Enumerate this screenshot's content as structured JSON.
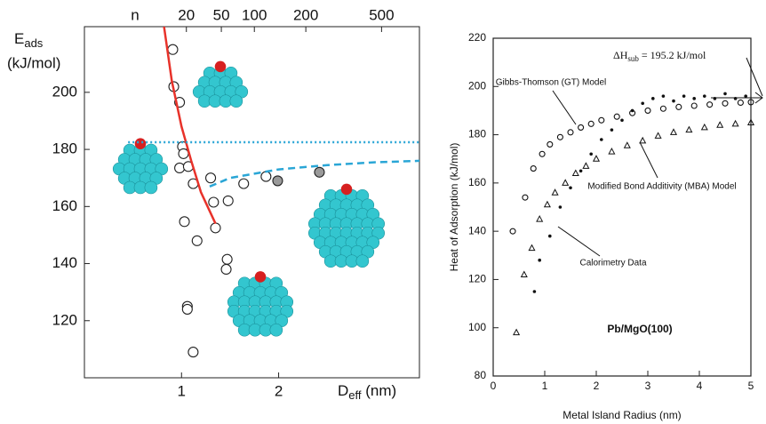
{
  "chart_data": [
    {
      "type": "scatter",
      "y_label": "E",
      "y_label_sub": "ads",
      "y_unit": "(kJ/mol)",
      "x_label": "D",
      "x_label_sub": "eff",
      "x_unit": " (nm)",
      "x2_label": "n",
      "xlim": [
        0,
        3.45
      ],
      "ylim": [
        100,
        223
      ],
      "xticks": [
        1,
        2
      ],
      "yticks": [
        120,
        140,
        160,
        180,
        200
      ],
      "x2ticks": [
        {
          "value": 1.05,
          "label": "20"
        },
        {
          "value": 1.41,
          "label": "50"
        },
        {
          "value": 1.75,
          "label": "100"
        },
        {
          "value": 2.28,
          "label": "200"
        },
        {
          "value": 3.06,
          "label": "500"
        }
      ],
      "series": [
        {
          "marker": "circle",
          "color": "#ffffff",
          "x": [
            0.91,
            0.92,
            0.98,
            1.01,
            1.02,
            0.98,
            1.07,
            1.12,
            1.03,
            1.16,
            1.06,
            1.06,
            1.12,
            1.3,
            1.35,
            1.33,
            1.48,
            1.47,
            1.46,
            1.64,
            1.87
          ],
          "values": [
            215,
            202,
            196.5,
            181,
            178.5,
            173.5,
            174,
            168,
            154.7,
            148,
            125,
            124,
            109,
            170,
            152.5,
            161.5,
            162,
            141.5,
            138,
            168,
            170.5
          ]
        },
        {
          "marker": "circle",
          "color": "#9a9a9a",
          "x": [
            1.99,
            2.42
          ],
          "values": [
            169,
            172
          ]
        },
        {
          "marker": "line",
          "color": "#e8322a",
          "x": [
            0.82,
            0.9,
            1.0,
            1.1,
            1.2,
            1.35
          ],
          "values": [
            223,
            204,
            188,
            176,
            165,
            154
          ]
        },
        {
          "marker": "dotted",
          "color": "#2aa6d6",
          "x": [
            0.45,
            3.45
          ],
          "values": [
            182.5,
            182.5
          ]
        },
        {
          "marker": "dashed",
          "color": "#2aa6d6",
          "x": [
            1.29,
            1.5,
            2,
            2.5,
            3,
            3.45
          ],
          "values": [
            167,
            170,
            173,
            174.5,
            175.5,
            176
          ]
        }
      ]
    },
    {
      "type": "scatter",
      "x_label": "Metal Island Radius (nm)",
      "y_label": "Heat of Adsorption (kJ/mol)",
      "xlim": [
        0,
        5
      ],
      "ylim": [
        80,
        220
      ],
      "xticks": [
        0,
        1,
        2,
        3,
        4,
        5
      ],
      "yticks": [
        80,
        100,
        120,
        140,
        160,
        180,
        200,
        220
      ],
      "annotation_main": "ΔH",
      "annotation_sub": "sub",
      "annotation_rest": " = 195.2 kJ/mol",
      "system": "Pb/MgO(100)",
      "series": [
        {
          "name": "Gibbs-Thomson (GT) Model",
          "marker": "circle",
          "color": "#111111",
          "x": [
            0.38,
            0.62,
            0.78,
            0.95,
            1.1,
            1.3,
            1.5,
            1.7,
            1.9,
            2.1,
            2.4,
            2.7,
            3.0,
            3.3,
            3.6,
            3.9,
            4.2,
            4.5,
            4.8,
            5.0
          ],
          "values": [
            140,
            154,
            166,
            172,
            176,
            179,
            181,
            183,
            184.5,
            186,
            187.5,
            189,
            190,
            190.8,
            191.5,
            192,
            192.5,
            193,
            193.3,
            193.5
          ]
        },
        {
          "name": "Modified Bond Additivity (MBA) Model",
          "marker": "triangle",
          "color": "#111111",
          "x": [
            0.45,
            0.6,
            0.75,
            0.9,
            1.05,
            1.2,
            1.4,
            1.6,
            1.8,
            2.0,
            2.3,
            2.6,
            2.9,
            3.2,
            3.5,
            3.8,
            4.1,
            4.4,
            4.7,
            5.0
          ],
          "values": [
            98,
            122,
            133,
            145,
            151,
            156,
            160,
            164,
            167,
            170,
            173,
            175.5,
            177.5,
            179.5,
            181,
            182,
            183,
            184,
            184.5,
            185
          ]
        },
        {
          "name": "Calorimetry Data",
          "marker": "dot",
          "color": "#111111",
          "x": [
            0.8,
            0.9,
            1.1,
            1.3,
            1.5,
            1.7,
            1.9,
            2.1,
            2.3,
            2.5,
            2.7,
            2.9,
            3.1,
            3.3,
            3.5,
            3.7,
            3.9,
            4.1,
            4.3,
            4.5,
            4.7,
            4.9
          ],
          "values": [
            115,
            128,
            138,
            150,
            158,
            165,
            172,
            178,
            182,
            186,
            190,
            193,
            195,
            196,
            194,
            196,
            195,
            196,
            195,
            197,
            195,
            196
          ]
        }
      ]
    }
  ]
}
